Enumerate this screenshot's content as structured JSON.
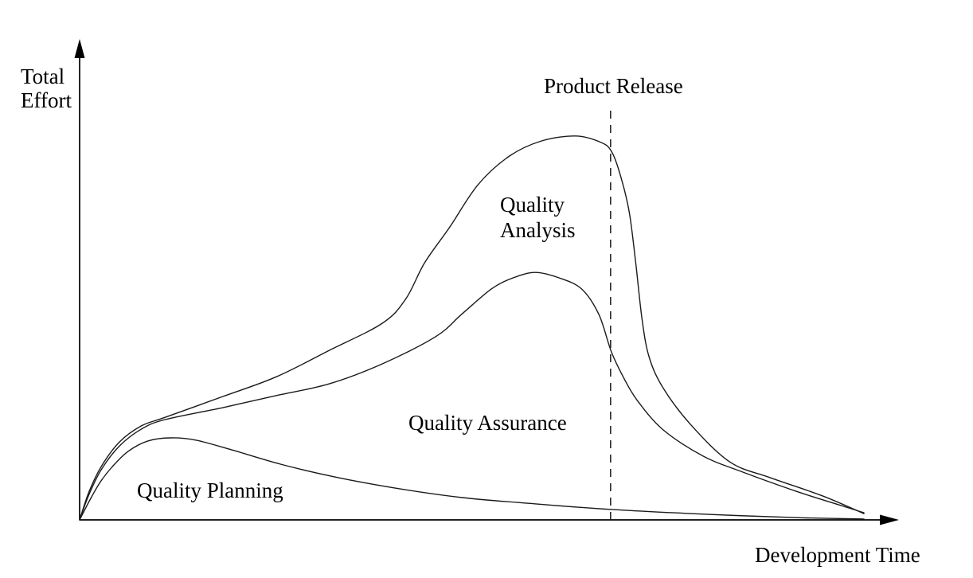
{
  "figure": {
    "y_axis_label": {
      "line1": "Total",
      "line2": "Effort"
    },
    "x_axis_label": "Development Time",
    "release_label": "Product Release",
    "curve_labels": {
      "analysis_line1": "Quality",
      "analysis_line2": "Analysis",
      "assurance": "Quality Assurance",
      "planning": "Quality Planning"
    },
    "colors": {
      "line": "#000000",
      "background": "#ffffff",
      "text": "#000000"
    }
  },
  "chart_data": {
    "type": "line",
    "title": "",
    "xlabel": "Development Time",
    "ylabel": "Total Effort",
    "axes_numeric": false,
    "grid": false,
    "legend": "none",
    "units": "relative effort (0-100) vs development time (0-100), estimated from pixels; qualitative figure with unlabeled axes",
    "xlim": [
      0,
      100
    ],
    "ylim": [
      0,
      100
    ],
    "series": [
      {
        "id": "quality_analysis",
        "name": "Quality Analysis",
        "points": [
          [
            0,
            0
          ],
          [
            1.2,
            6.3
          ],
          [
            2.8,
            12.1
          ],
          [
            5.1,
            17.5
          ],
          [
            7.9,
            21.1
          ],
          [
            10.9,
            23.0
          ],
          [
            18.3,
            27.7
          ],
          [
            25.1,
            32.1
          ],
          [
            31.8,
            38.0
          ],
          [
            38.6,
            44.1
          ],
          [
            41.6,
            49.6
          ],
          [
            44.0,
            57.7
          ],
          [
            47.2,
            65.7
          ],
          [
            50.8,
            75.2
          ],
          [
            54.8,
            81.6
          ],
          [
            58.9,
            85.0
          ],
          [
            63.2,
            86.1
          ],
          [
            66.3,
            84.8
          ],
          [
            67.8,
            82.7
          ],
          [
            69.0,
            77.0
          ],
          [
            70.1,
            68.8
          ],
          [
            70.9,
            57.7
          ],
          [
            71.7,
            45.2
          ],
          [
            72.6,
            36.6
          ],
          [
            74.4,
            29.6
          ],
          [
            77.9,
            21.4
          ],
          [
            82.9,
            13.0
          ],
          [
            88.0,
            9.5
          ],
          [
            94.7,
            5.4
          ],
          [
            100,
            1.4
          ]
        ]
      },
      {
        "id": "quality_assurance",
        "name": "Quality Assurance",
        "points": [
          [
            0,
            0
          ],
          [
            1.2,
            5.7
          ],
          [
            2.8,
            11.4
          ],
          [
            5.1,
            16.6
          ],
          [
            7.9,
            20.4
          ],
          [
            10.9,
            22.5
          ],
          [
            18.3,
            25.2
          ],
          [
            25.1,
            27.9
          ],
          [
            31.8,
            30.5
          ],
          [
            38.6,
            35.0
          ],
          [
            45.4,
            41.1
          ],
          [
            48.7,
            46.1
          ],
          [
            52.5,
            51.8
          ],
          [
            55.3,
            54.3
          ],
          [
            58.1,
            55.5
          ],
          [
            61.1,
            54.3
          ],
          [
            64.0,
            51.8
          ],
          [
            66.2,
            46.1
          ],
          [
            67.8,
            37.7
          ],
          [
            69.3,
            32.1
          ],
          [
            71.1,
            26.8
          ],
          [
            74.4,
            20.2
          ],
          [
            79.5,
            14.3
          ],
          [
            84.6,
            10.7
          ],
          [
            91.4,
            6.4
          ],
          [
            96.4,
            3.6
          ],
          [
            100,
            1.6
          ]
        ]
      },
      {
        "id": "quality_planning",
        "name": "Quality Planning",
        "points": [
          [
            0,
            0
          ],
          [
            1.2,
            4.1
          ],
          [
            2.6,
            8.4
          ],
          [
            4.2,
            12.0
          ],
          [
            6.2,
            15.4
          ],
          [
            8.7,
            17.7
          ],
          [
            11.6,
            18.4
          ],
          [
            14.8,
            17.9
          ],
          [
            19.4,
            15.7
          ],
          [
            25.6,
            12.5
          ],
          [
            32.6,
            9.6
          ],
          [
            40.7,
            7.0
          ],
          [
            48.8,
            5.0
          ],
          [
            58.0,
            3.6
          ],
          [
            68.1,
            2.3
          ],
          [
            79.3,
            1.3
          ],
          [
            91.5,
            0.5
          ],
          [
            100,
            0.2
          ]
        ]
      }
    ],
    "annotations": [
      {
        "id": "product_release",
        "label": "Product Release",
        "style": "dashed-vertical-line",
        "x": 67.7,
        "y_from": 0,
        "y_to": 92
      }
    ]
  }
}
